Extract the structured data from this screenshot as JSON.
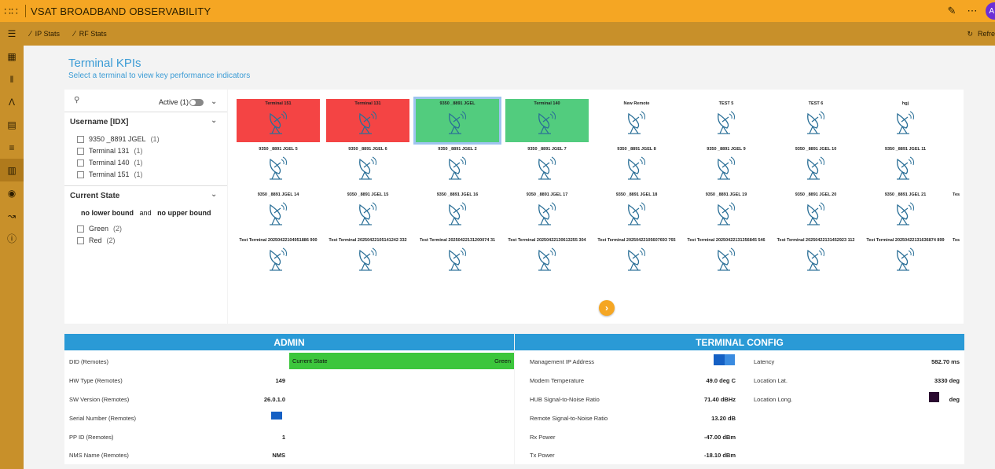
{
  "app": {
    "title": "VSAT BROADBAND OBSERVABILITY",
    "avatar_initial": "A"
  },
  "toolbar": {
    "ip_stats": "IP Stats",
    "rf_stats": "RF Stats",
    "refresh": "Refre"
  },
  "page": {
    "title": "Terminal KPIs",
    "subtitle": "Select a terminal to view key performance indicators"
  },
  "filter": {
    "active_label": "Active (1)",
    "username_header": "Username [IDX]",
    "usernames": [
      {
        "label": "9350 _8891 JGEL",
        "count": "(1)"
      },
      {
        "label": "Terminal 131",
        "count": "(1)"
      },
      {
        "label": "Terminal 140",
        "count": "(1)"
      },
      {
        "label": "Terminal 151",
        "count": "(1)"
      }
    ],
    "state_header": "Current State",
    "lower_bound": "no lower bound",
    "and_text": "and",
    "upper_bound": "no upper bound",
    "states": [
      {
        "label": "Green",
        "count": "(2)"
      },
      {
        "label": "Red",
        "count": "(2)"
      }
    ]
  },
  "terminals": [
    [
      {
        "label": "Terminal 151",
        "state": "red"
      },
      {
        "label": "Terminal 131",
        "state": "red"
      },
      {
        "label": "9350 _8891 JGEL",
        "state": "green",
        "selected": true
      },
      {
        "label": "Terminal 140",
        "state": "green"
      },
      {
        "label": "New Remote",
        "state": "none"
      },
      {
        "label": "TEST 5",
        "state": "none"
      },
      {
        "label": "TEST 6",
        "state": "none"
      },
      {
        "label": "hgj",
        "state": "none"
      }
    ],
    [
      {
        "label": "9350 _8891 JGEL 5",
        "state": "none"
      },
      {
        "label": "9350 _8891 JGEL 6",
        "state": "none"
      },
      {
        "label": "9350 _8891 JGEL 2",
        "state": "none"
      },
      {
        "label": "9350 _8891 JGEL 7",
        "state": "none"
      },
      {
        "label": "9350 _8891 JGEL 8",
        "state": "none"
      },
      {
        "label": "9350 _8891 JGEL 9",
        "state": "none"
      },
      {
        "label": "9350 _8891 JGEL 10",
        "state": "none"
      },
      {
        "label": "9350 _8891 JGEL 11",
        "state": "none"
      }
    ],
    [
      {
        "label": "9350 _8891 JGEL 14",
        "state": "none"
      },
      {
        "label": "9350 _8891 JGEL 15",
        "state": "none"
      },
      {
        "label": "9350 _8891 JGEL 16",
        "state": "none"
      },
      {
        "label": "9350 _8891 JGEL 17",
        "state": "none"
      },
      {
        "label": "9350 _8891 JGEL 18",
        "state": "none"
      },
      {
        "label": "9350 _8891 JGEL 19",
        "state": "none"
      },
      {
        "label": "9350 _8891 JGEL 20",
        "state": "none"
      },
      {
        "label": "9350 _8891 JGEL 21",
        "state": "none"
      }
    ],
    [
      {
        "label": "Test Terminal 20250422104951886 900",
        "state": "none"
      },
      {
        "label": "Test Terminal 20250422105141242 332",
        "state": "none"
      },
      {
        "label": "Test Terminal 20250422131200074 31",
        "state": "none"
      },
      {
        "label": "Test Terminal 20250422130613255 304",
        "state": "none"
      },
      {
        "label": "Test Terminal 20250422105607693 765",
        "state": "none"
      },
      {
        "label": "Test Terminal 20250422131356845 546",
        "state": "none"
      },
      {
        "label": "Test Terminal 20250422131452923 112",
        "state": "none"
      },
      {
        "label": "Test Terminal 20250422131636874 899",
        "state": "none"
      }
    ]
  ],
  "partial_tile_label": "Tes",
  "colors": {
    "red": "#f44444",
    "green": "#52cc7e",
    "accent": "#2a9ad6",
    "brand": "#f5a623"
  },
  "admin": {
    "header": "ADMIN",
    "did_label": "DID (Remotes)",
    "hw_label": "HW Type (Remotes)",
    "hw_value": "149",
    "sw_label": "SW Version (Remotes)",
    "sw_value": "26.0.1.0",
    "serial_label": "Serial Number (Remotes)",
    "pp_label": "PP ID (Remotes)",
    "pp_value": "1",
    "nms_label": "NMS Name (Remotes)",
    "nms_value": "NMS",
    "state_label": "Current State",
    "state_value": "Green"
  },
  "config": {
    "header": "TERMINAL CONFIG",
    "mgmt_label": "Management IP Address",
    "temp_label": "Modem Temperature",
    "temp_value": "49.0 deg C",
    "hub_label": "HUB Signal-to-Noise Ratio",
    "hub_value": "71.40 dBHz",
    "remote_label": "Remote Signal-to-Noise Ratio",
    "remote_value": "13.20 dB",
    "rx_label": "Rx Power",
    "rx_value": "-47.00 dBm",
    "tx_label": "Tx Power",
    "tx_value": "-18.10 dBm",
    "lat_label": "Latency",
    "lat_value": "582.70 ms",
    "loclat_label": "Location Lat.",
    "loclat_value": "3330 deg",
    "loclong_label": "Location Long.",
    "loclong_value": "deg"
  }
}
